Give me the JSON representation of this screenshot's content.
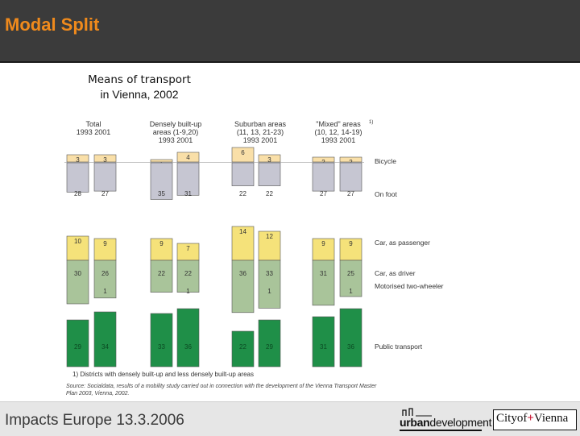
{
  "header": {
    "title": "Modal Split"
  },
  "chart_title": {
    "line1": "Means of transport",
    "line2": "in Vienna, 2002"
  },
  "footer": {
    "event": "Impacts Europe 13.3.2006",
    "logo_urban_bold": "urban",
    "logo_urban_rest": "development",
    "logo_city_a": "City",
    "logo_city_of": "of",
    "logo_city_b": "Vienna"
  },
  "colors": {
    "header_bg": "#3b3b3b",
    "title": "#f08a1c",
    "bicycle": "#f9dfa8",
    "on_foot": "#c6c6d2",
    "car_passenger": "#f5e27a",
    "car_driver": "#a9c49a",
    "motorised_two_wheeler": "#ffffff",
    "public_transport": "#1f8f48"
  },
  "chart_data": {
    "type": "bar",
    "stacked": true,
    "groups": [
      {
        "label_lines": [
          "Total",
          "1993   2001"
        ]
      },
      {
        "label_lines": [
          "Densely built-up",
          "areas (1-9,20)",
          "1993   2001"
        ]
      },
      {
        "label_lines": [
          "Suburban areas",
          "(11, 13, 21-23)",
          "1993   2001"
        ]
      },
      {
        "label_lines": [
          "\"Mixed\" areas",
          "(10, 12, 14-19)",
          "1993   2001"
        ],
        "footnote_mark": "1)"
      }
    ],
    "x": [
      "Total 1993",
      "Total 2001",
      "Densely 1993",
      "Densely 2001",
      "Suburban 1993",
      "Suburban 2001",
      "Mixed 1993",
      "Mixed 2001"
    ],
    "series": [
      {
        "name": "Bicycle",
        "values": [
          3,
          3,
          1,
          4,
          6,
          3,
          2,
          2
        ]
      },
      {
        "name": "On foot",
        "values": [
          28,
          27,
          35,
          31,
          22,
          22,
          27,
          27
        ]
      },
      {
        "name": "Car, as passenger",
        "values": [
          10,
          9,
          9,
          7,
          14,
          12,
          9,
          9
        ]
      },
      {
        "name": "Car, as driver",
        "values": [
          30,
          26,
          22,
          22,
          36,
          33,
          31,
          25
        ]
      },
      {
        "name": "Motorised two-wheeler",
        "values": [
          null,
          1,
          null,
          1,
          null,
          1,
          null,
          1
        ]
      },
      {
        "name": "Public transport",
        "values": [
          29,
          34,
          33,
          36,
          22,
          29,
          31,
          36
        ]
      }
    ],
    "legend_labels": [
      "Bicycle",
      "On foot",
      "Car, as passenger",
      "Car, as driver",
      "Motorised two-wheeler",
      "Public transport"
    ],
    "footnote": "1)  Districts with densely built-up and less densely built-up areas",
    "source_lines": [
      "Source: Socialdata, results of a mobility study carried out in connection with the development of the Vienna Transport Master",
      "Plan 2003, Vienna, 2002."
    ]
  }
}
